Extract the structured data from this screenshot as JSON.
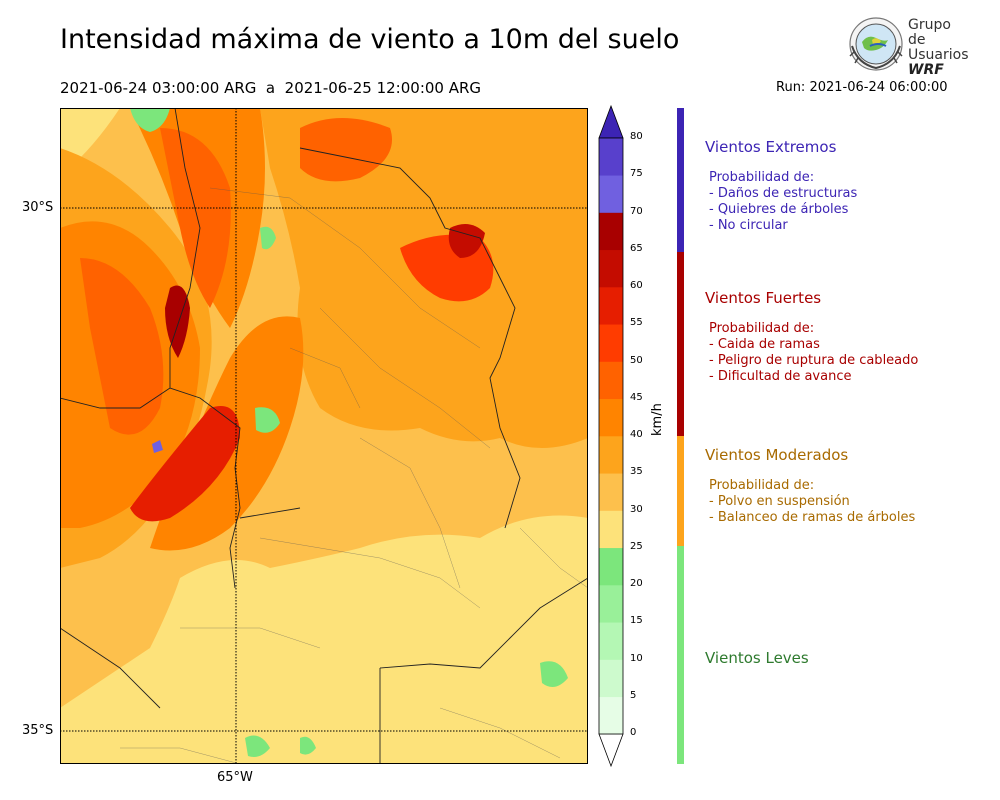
{
  "header": {
    "title": "Intensidad máxima de viento a 10m del suelo",
    "period": "2021-06-24 03:00:00 ARG  a  2021-06-25 12:00:00 ARG",
    "run": "Run: 2021-06-24 06:00:00"
  },
  "logo": {
    "line1": "Grupo de",
    "line2": "Usuarios",
    "line3": "WRF"
  },
  "map": {
    "lat_labels": [
      "30°S",
      "35°S"
    ],
    "lon_labels": [
      "65°W"
    ]
  },
  "colorbar": {
    "unit": "km/h",
    "ticks": [
      "0",
      "5",
      "10",
      "15",
      "20",
      "25",
      "30",
      "35",
      "40",
      "45",
      "50",
      "55",
      "60",
      "65",
      "70",
      "75",
      "80"
    ],
    "colors": [
      "#e6fde6",
      "#cdfacd",
      "#b4f7b4",
      "#99f099",
      "#7ce67c",
      "#fde27a",
      "#fdc04c",
      "#fda41c",
      "#ff8400",
      "#ff6200",
      "#ff3c00",
      "#e61e00",
      "#c40c00",
      "#a80000",
      "#7060e0",
      "#5840cc",
      "#3c24b4"
    ],
    "extend_top_color": "#3c24b4",
    "extend_bottom_color": "#ffffff"
  },
  "legend": [
    {
      "title": "Vientos Extremos",
      "color": "#3c24b4",
      "lines": [
        "Probabilidad de:",
        "- Daños de estructuras",
        "- Quiebres de árboles",
        "- No circular"
      ]
    },
    {
      "title": "Vientos Fuertes",
      "color": "#a80000",
      "lines": [
        "Probabilidad de:",
        "- Caida de ramas",
        "- Peligro de ruptura de cableado",
        "- Dificultad de avance"
      ]
    },
    {
      "title": "Vientos Moderados",
      "color": "#fda41c",
      "title_color": "#a86a00",
      "lines": [
        "Probabilidad de:",
        "- Polvo en suspensión",
        "- Balanceo de ramas de árboles"
      ]
    },
    {
      "title": "Vientos Leves",
      "color": "#7ce67c",
      "title_color": "#2e7a2e",
      "lines": []
    }
  ]
}
